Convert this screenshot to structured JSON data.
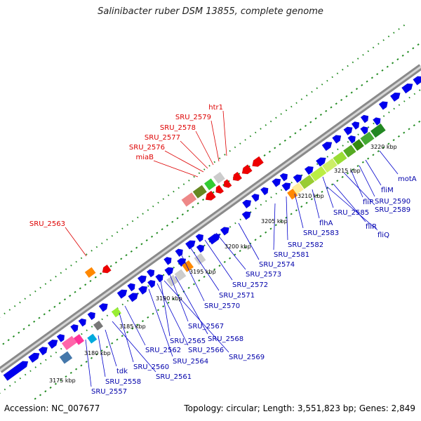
{
  "title": "Salinibacter ruber DSM 13855, complete genome",
  "footer": {
    "accession": "Accession: NC_007677",
    "summary": "Topology: circular; Length: 3,551,823 bp; Genes: 2,849"
  },
  "colors": {
    "forward": "#0000ee",
    "reverse": "#ee0000",
    "backbone": "#9a9a9a",
    "gc_dots": "#228b22",
    "label_forward": "#0000aa",
    "label_reverse": "#dd0000"
  },
  "kbp_ticks": [
    "3175 kbp",
    "3180 kbp",
    "3185 kbp",
    "3190 kbp",
    "3195 kbp",
    "3200 kbp",
    "3205 kbp",
    "3210 kbp",
    "3215 kbp",
    "3220 kbp"
  ],
  "reverse_labels": [
    "htr1",
    "SRU_2579",
    "SRU_2578",
    "SRU_2577",
    "SRU_2576",
    "miaB",
    "SRU_2563"
  ],
  "forward_labels": [
    "motA",
    "fliM",
    "SRU_2590",
    "fliP",
    "SRU_2589",
    "SRU_2585",
    "fliR",
    "fliQ",
    "flhA",
    "SRU_2583",
    "SRU_2582",
    "SRU_2581",
    "SRU_2574",
    "SRU_2573",
    "SRU_2572",
    "SRU_2571",
    "SRU_2570",
    "SRU_2567",
    "SRU_2568",
    "SRU_2565",
    "SRU_2566",
    "SRU_2564",
    "SRU_2569",
    "SRU_2562",
    "SRU_2560",
    "SRU_2561",
    "tdk",
    "SRU_2558",
    "SRU_2557"
  ]
}
